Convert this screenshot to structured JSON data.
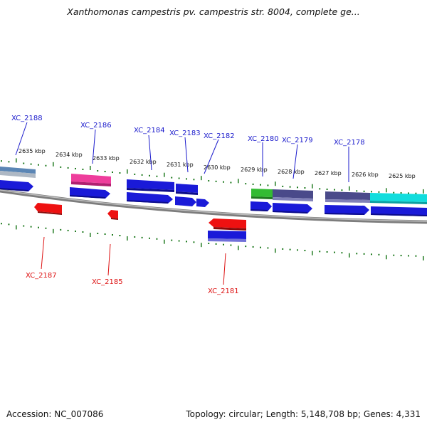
{
  "title": "Xanthomonas campestris pv. campestris str. 8004, complete ge...",
  "accession_text": "Accession: NC_007086",
  "topology_text": "Topology: circular; Length: 5,148,708 bp; Genes: 4,331",
  "colors": {
    "forward_label": "#1a1acc",
    "reverse_label": "#dd1111",
    "tick": "#1f7a1f",
    "backbone": "#8a8a8a",
    "blue_gene": "#1a1ad8",
    "red_gene": "#ee1111",
    "magenta_gene": "#ee3d9c",
    "green_gene": "#33bb33",
    "navy_gene": "#4a4a8a",
    "cyan_gene": "#11dddd",
    "steel_gene": "#5b86b5"
  },
  "tick_labels": [
    "2635 kbp",
    "2634 kbp",
    "2633 kbp",
    "2632 kbp",
    "2631 kbp",
    "2630 kbp",
    "2629 kbp",
    "2628 kbp",
    "2627 kbp",
    "2626 kbp",
    "2625 kbp"
  ],
  "forward_gene_labels": [
    "XC_2188",
    "XC_2186",
    "XC_2184",
    "XC_2183",
    "XC_2182",
    "XC_2180",
    "XC_2179",
    "XC_2178"
  ],
  "reverse_gene_labels": [
    "XC_2187",
    "XC_2185",
    "XC_2181"
  ]
}
